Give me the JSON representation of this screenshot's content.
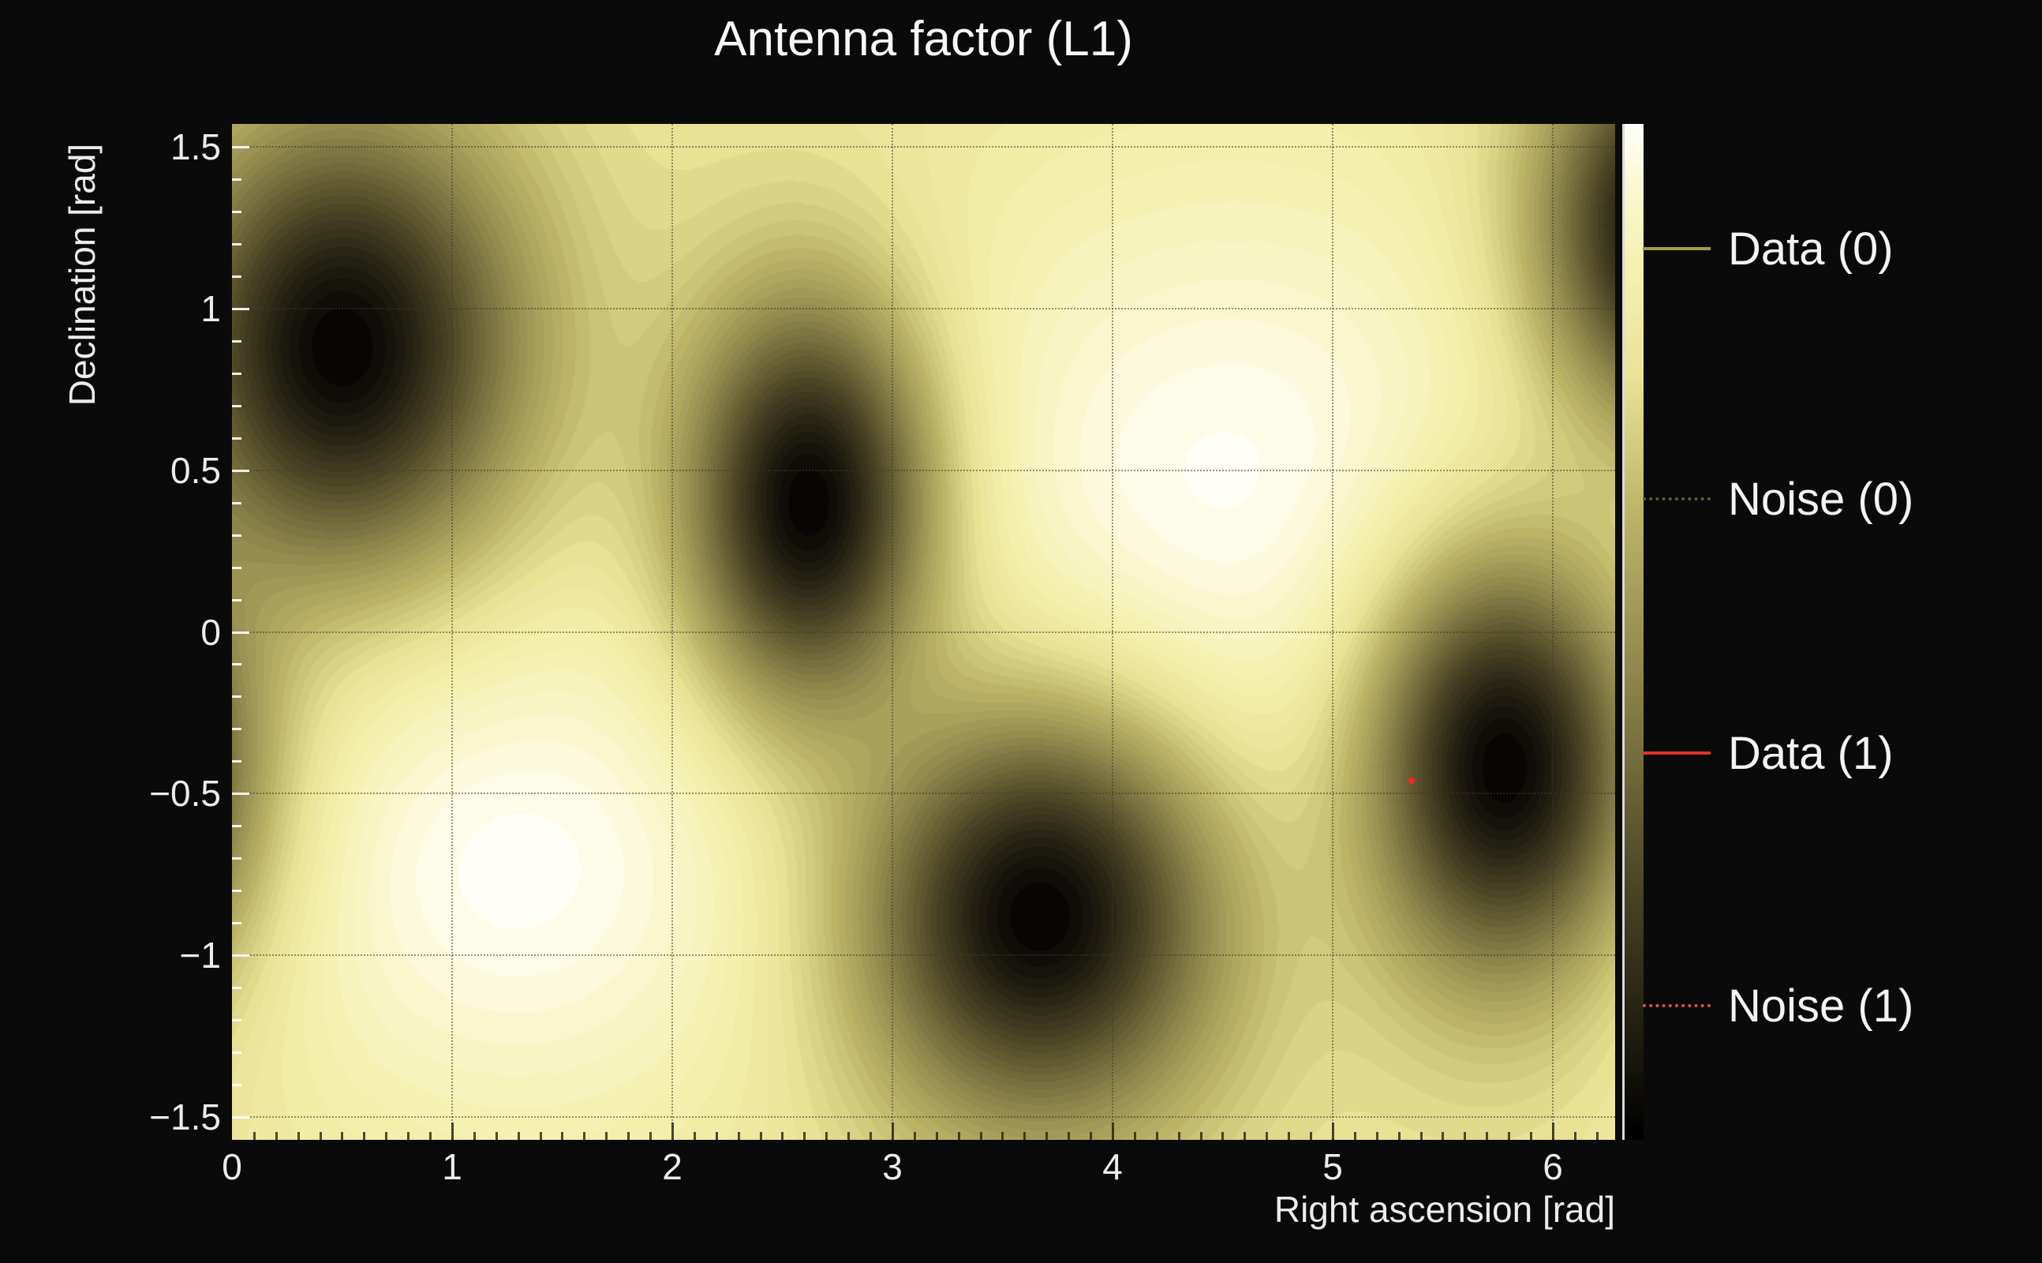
{
  "window": {
    "background": "#0a0a0a",
    "text_color": "#ececec"
  },
  "chart_data": {
    "type": "heatmap",
    "title": "Antenna factor (L1)",
    "xlabel": "Right ascension [rad]",
    "ylabel": "Declination [rad]",
    "xlim": [
      0,
      6.2832
    ],
    "ylim": [
      -1.5708,
      1.5708
    ],
    "xticks": [
      0,
      1,
      2,
      3,
      4,
      5,
      6
    ],
    "xtick_labels": [
      "0",
      "1",
      "2",
      "3",
      "4",
      "5",
      "6"
    ],
    "yticks": [
      1.5,
      1,
      0.5,
      0,
      -0.5,
      -1,
      -1.5
    ],
    "ytick_labels": [
      "1.5",
      "1",
      "0.5",
      "0",
      "−0.5",
      "−1",
      "−1.5"
    ],
    "minor_tick_step": 0.1,
    "grid": true,
    "grid_style": "dotted",
    "grid_color": "rgba(60,58,40,0.55)",
    "colormap": {
      "stops": [
        [
          0.0,
          "#000000"
        ],
        [
          0.1,
          "#1f1c10"
        ],
        [
          0.25,
          "#4c4626"
        ],
        [
          0.45,
          "#8c844a"
        ],
        [
          0.62,
          "#beb568"
        ],
        [
          0.75,
          "#e9e295"
        ],
        [
          0.85,
          "#f4f0ae"
        ],
        [
          0.93,
          "#faf7cd"
        ],
        [
          1.0,
          "#fffef7"
        ]
      ]
    },
    "background_level": 0.76,
    "null_depth": 0.985,
    "null_sharpness": 2.0,
    "quantize_levels": 44,
    "antenna_nulls": [
      {
        "ra": 0.5,
        "dec": 0.88,
        "rx": 1.15,
        "ry": 1.0,
        "wrap": false
      },
      {
        "ra": 2.62,
        "dec": 0.4,
        "rx": 0.8,
        "ry": 0.9,
        "wrap": false
      },
      {
        "ra": 3.67,
        "dec": -0.88,
        "rx": 1.15,
        "ry": 0.9,
        "wrap": false
      },
      {
        "ra": 5.78,
        "dec": -0.42,
        "rx": 0.9,
        "ry": 0.95,
        "wrap": true
      },
      {
        "ra": 6.55,
        "dec": 1.25,
        "rx": 0.85,
        "ry": 0.85,
        "wrap": false
      }
    ],
    "bright_maxima": [
      {
        "ra": 4.55,
        "dec": 0.42,
        "sx": 1.15,
        "sy": 0.75,
        "amp": 0.24
      },
      {
        "ra": 1.3,
        "dec": -0.72,
        "sx": 0.95,
        "sy": 0.62,
        "amp": 0.24
      }
    ],
    "marker": {
      "ra": 5.36,
      "dec": -0.46,
      "color": "#ff2222"
    },
    "colorbar": {
      "position": "right",
      "tick_labels": []
    },
    "legend": {
      "position": "right",
      "items": [
        {
          "label": "Data (0)",
          "color": "#a0a046",
          "line": "solid"
        },
        {
          "label": "Noise (0)",
          "color": "#5e5e24",
          "line": "dotted"
        },
        {
          "label": "Data (1)",
          "color": "#dd3328",
          "line": "solid"
        },
        {
          "label": "Noise (1)",
          "color": "#e05045",
          "line": "dotted"
        }
      ]
    }
  }
}
